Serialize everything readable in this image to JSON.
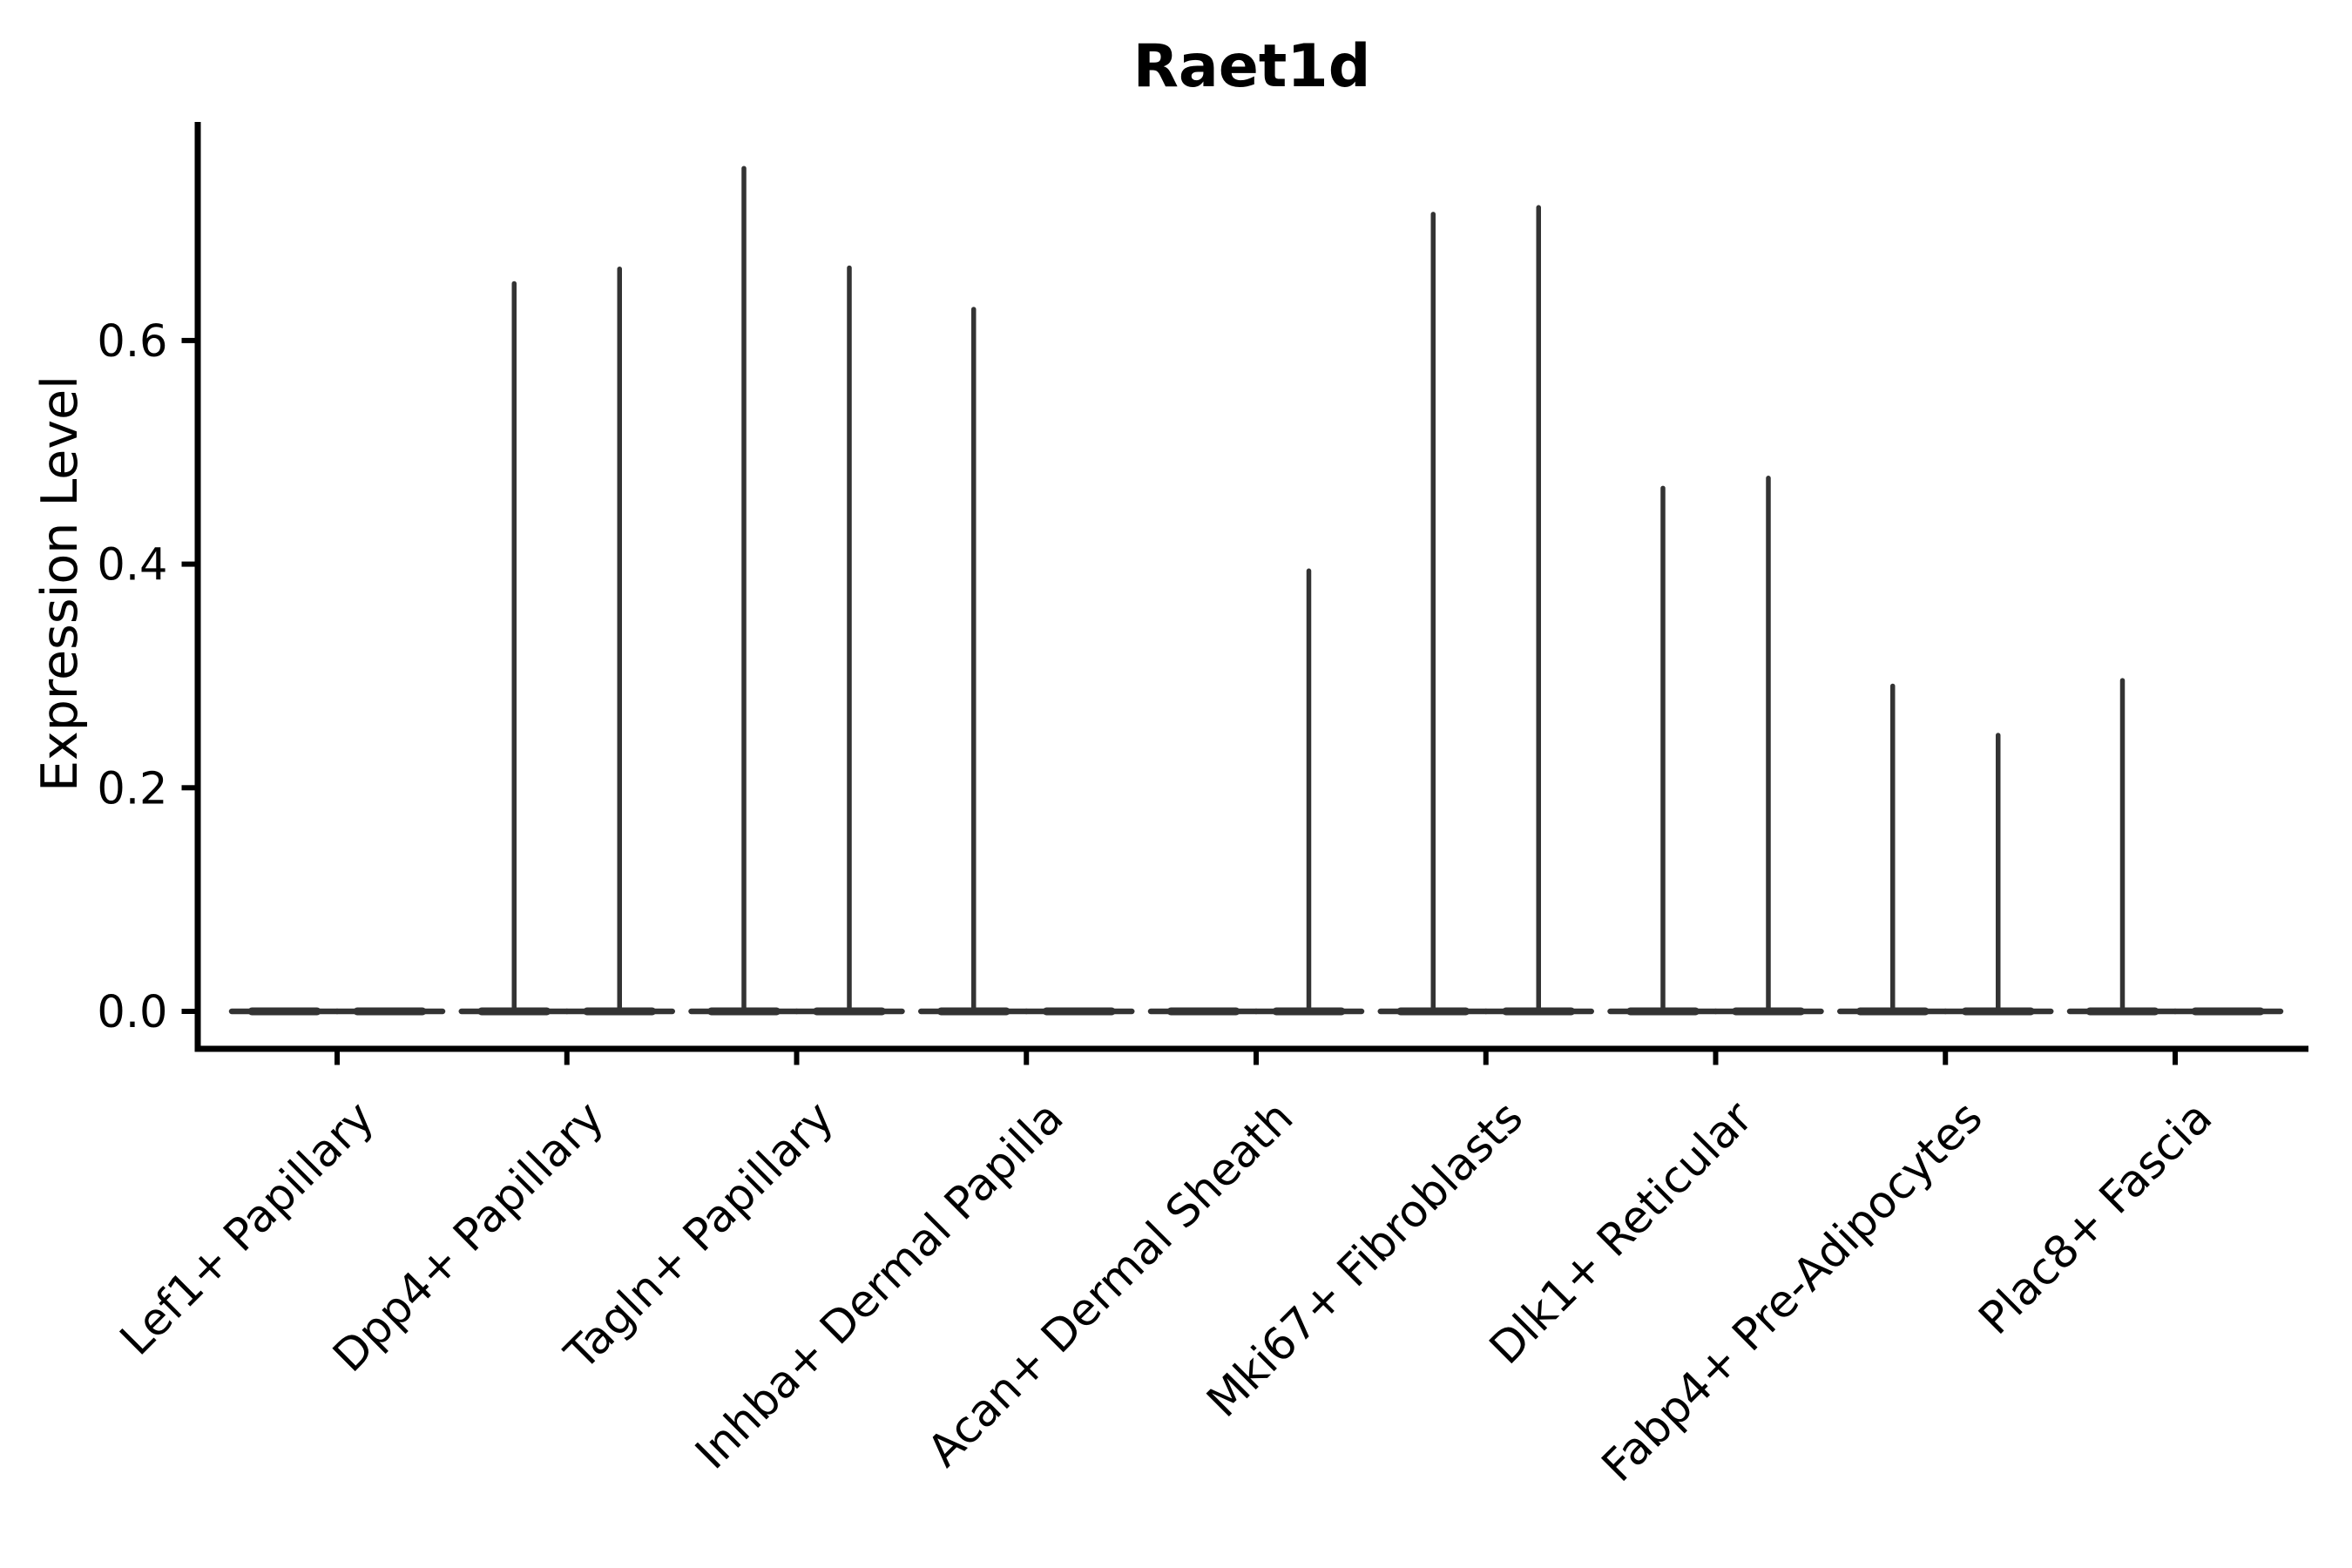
{
  "figure": {
    "title": "Raet1d",
    "y_axis_label": "Expression Level"
  },
  "chart_data": {
    "type": "violin",
    "title": "Raet1d",
    "xlabel": "",
    "ylabel": "Expression Level",
    "categories": [
      "Lef1+ Papillary",
      "Dpp4+ Papillary",
      "Tagln+ Papillary",
      "Inhba+ Dermal Papilla",
      "Acan+ Dermal Sheath",
      "Mki67+ Fibroblasts",
      "Dlk1+ Reticular",
      "Fabp4+ Pre-Adipocytes",
      "Plac8+ Fascia"
    ],
    "violins_per_category": 2,
    "baseline_value": 0.0,
    "series": [
      {
        "name": "violin-left",
        "max_expression": [
          0,
          0.651,
          0.754,
          0.628,
          0,
          0.713,
          0.468,
          0.291,
          0.296
        ]
      },
      {
        "name": "violin-right",
        "max_expression": [
          0,
          0.664,
          0.665,
          0,
          0.394,
          0.719,
          0.477,
          0.247,
          0
        ]
      }
    ],
    "yticks": [
      0.0,
      0.2,
      0.4,
      0.6
    ],
    "ytick_labels": [
      "0.0",
      "0.2",
      "0.4",
      "0.6"
    ],
    "ylim": [
      -0.03,
      0.8
    ],
    "grid": false,
    "legend_position": "none",
    "x_tick_rotation_degrees": 45,
    "colors": {
      "violin_stroke": "#333333",
      "spine": "#000000",
      "text": "#000000",
      "background": "#ffffff"
    }
  }
}
